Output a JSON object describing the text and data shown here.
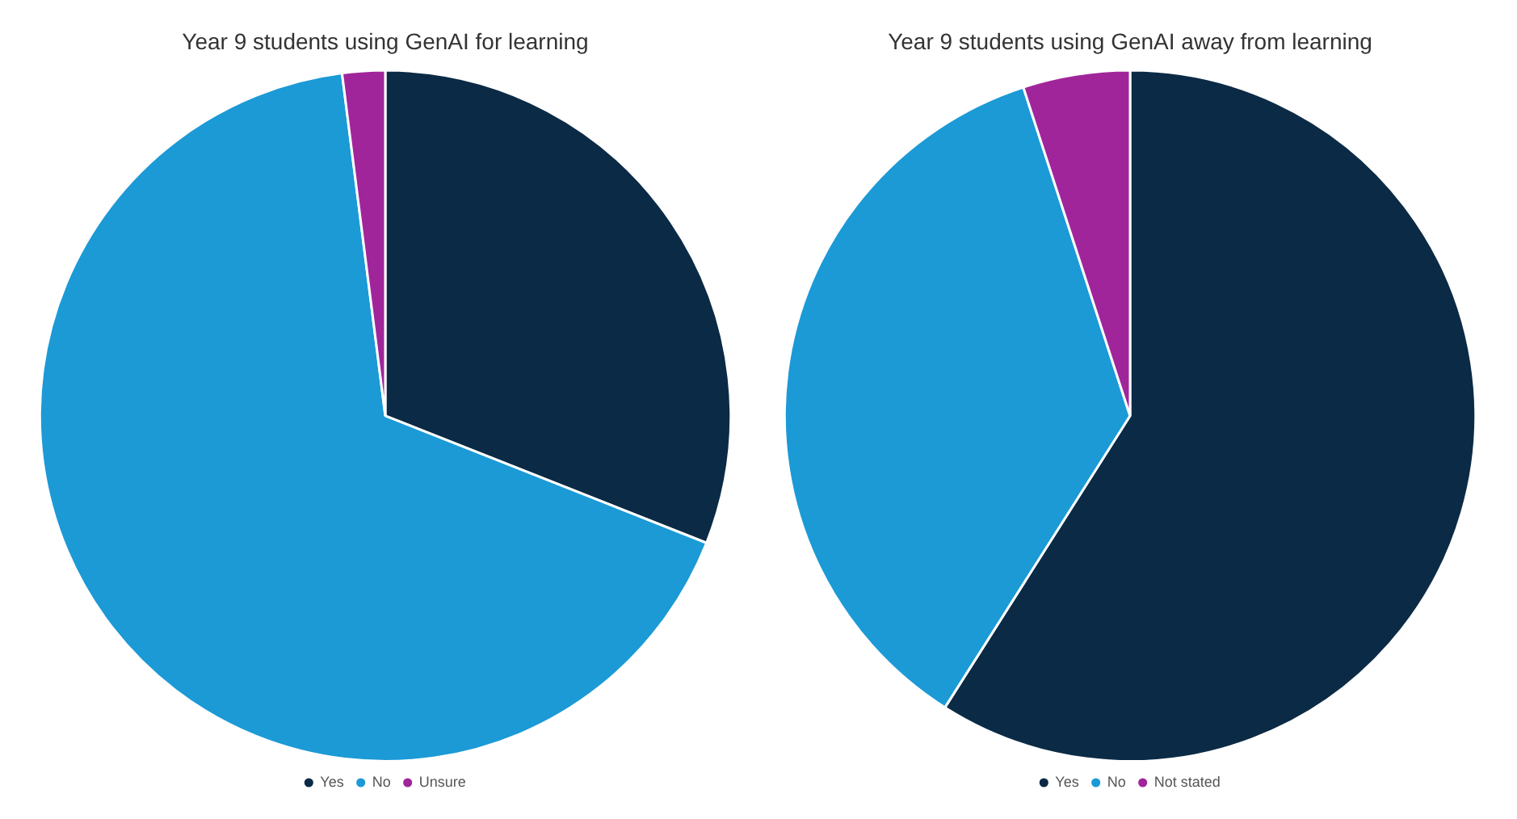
{
  "chart_data": [
    {
      "type": "pie",
      "title": "Year 9 students using GenAI for learning",
      "categories": [
        "Yes",
        "No",
        "Unsure"
      ],
      "values": [
        31,
        67,
        2
      ],
      "colors": [
        "#0b2a45",
        "#1b9ad6",
        "#a0259a"
      ],
      "legend": "bottom"
    },
    {
      "type": "pie",
      "title": "Year 9 students using GenAI away from learning",
      "categories": [
        "Yes",
        "No",
        "Not stated"
      ],
      "values": [
        59,
        36,
        5
      ],
      "colors": [
        "#0b2a45",
        "#1b9ad6",
        "#a0259a"
      ],
      "legend": "bottom"
    }
  ]
}
